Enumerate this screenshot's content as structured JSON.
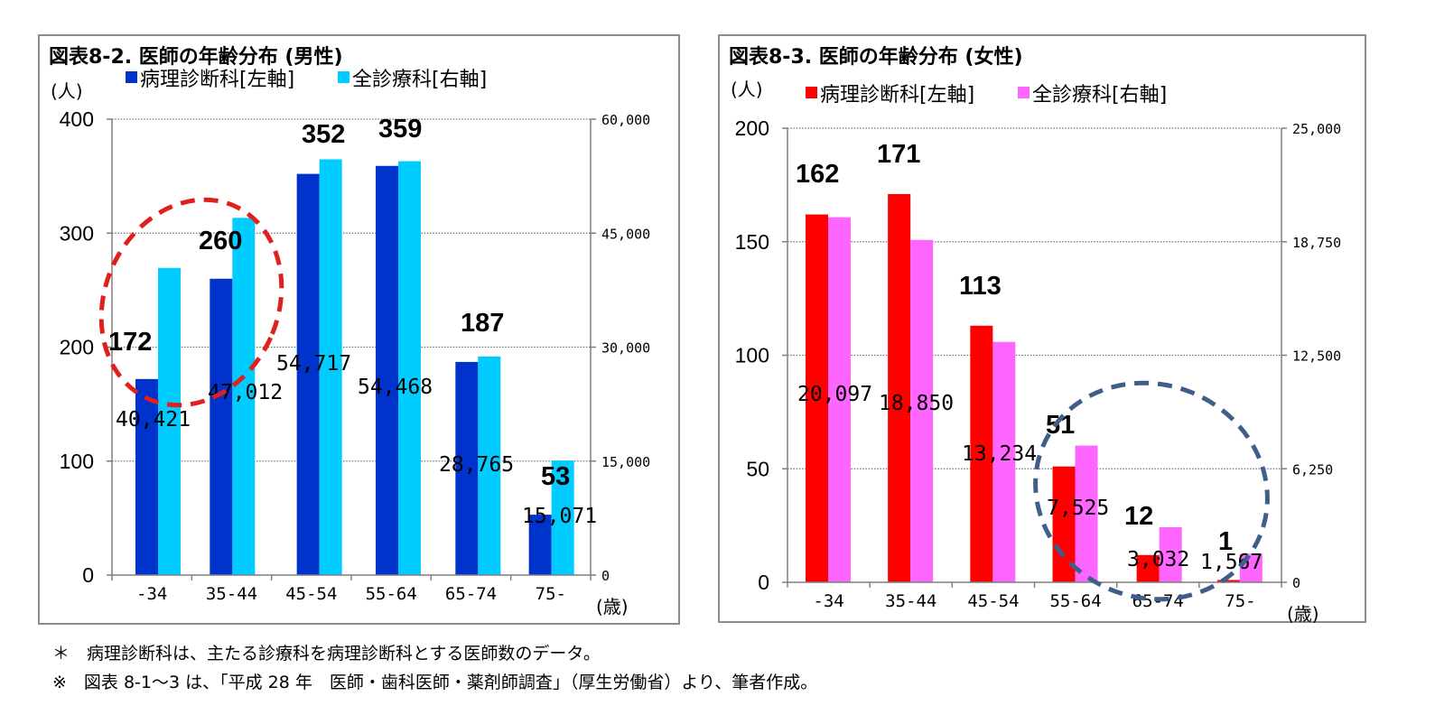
{
  "chart_data": [
    {
      "type": "bar",
      "title": "図表8-2. 医師の年齢分布 (男性)",
      "left_unit": "(人)",
      "xlabel": "(歳)",
      "categories": [
        "-34",
        "35-44",
        "45-54",
        "55-64",
        "65-74",
        "75-"
      ],
      "series": [
        {
          "name": "病理診断科[左軸]",
          "axis": "left",
          "color": "#0033cc",
          "values": [
            172,
            260,
            352,
            359,
            187,
            53
          ],
          "labels": [
            "172",
            "260",
            "352",
            "359",
            "187",
            "53"
          ]
        },
        {
          "name": "全診療科[右軸]",
          "axis": "right",
          "color": "#00ccff",
          "values": [
            40421,
            47012,
            54717,
            54468,
            28765,
            15071
          ],
          "labels": [
            "40,421",
            "47,012",
            "54,717",
            "54,468",
            "28,765",
            "15,071"
          ]
        }
      ],
      "left_ylim": [
        0,
        400
      ],
      "left_ticks": [
        "0",
        "100",
        "200",
        "300",
        "400"
      ],
      "right_ylim": [
        0,
        60000
      ],
      "right_ticks": [
        "0",
        "15,000",
        "30,000",
        "45,000",
        "60,000"
      ],
      "grid": true,
      "legend_position": "top"
    },
    {
      "type": "bar",
      "title": "図表8-3. 医師の年齢分布 (女性)",
      "left_unit": "(人)",
      "xlabel": "(歳)",
      "categories": [
        "-34",
        "35-44",
        "45-54",
        "55-64",
        "65-74",
        "75-"
      ],
      "series": [
        {
          "name": "病理診断科[左軸]",
          "axis": "left",
          "color": "#ff0000",
          "values": [
            162,
            171,
            113,
            51,
            12,
            1
          ],
          "labels": [
            "162",
            "171",
            "113",
            "51",
            "12",
            "1"
          ]
        },
        {
          "name": "全診療科[右軸]",
          "axis": "right",
          "color": "#ff66ff",
          "values": [
            20097,
            18850,
            13234,
            7525,
            3032,
            1567
          ],
          "labels": [
            "20,097",
            "18,850",
            "13,234",
            "7,525",
            "3,032",
            "1,567"
          ]
        }
      ],
      "left_ylim": [
        0,
        200
      ],
      "left_ticks": [
        "0",
        "50",
        "100",
        "150",
        "200"
      ],
      "right_ylim": [
        0,
        25000
      ],
      "right_ticks": [
        "0",
        "6,250",
        "12,500",
        "18,750",
        "25,000"
      ],
      "grid": true,
      "legend_position": "top"
    }
  ],
  "annotations": {
    "left_ellipse_color": "#e0201c",
    "right_ellipse_color": "#3f5f8a"
  },
  "notes": {
    "line1": "＊　病理診断科は、主たる診療科を病理診断科とする医師数のデータ。",
    "line2": "※　図表 8-1～3 は、「平成 28 年　医師・歯科医師・薬剤師調査」（厚生労働省）より、筆者作成。"
  }
}
